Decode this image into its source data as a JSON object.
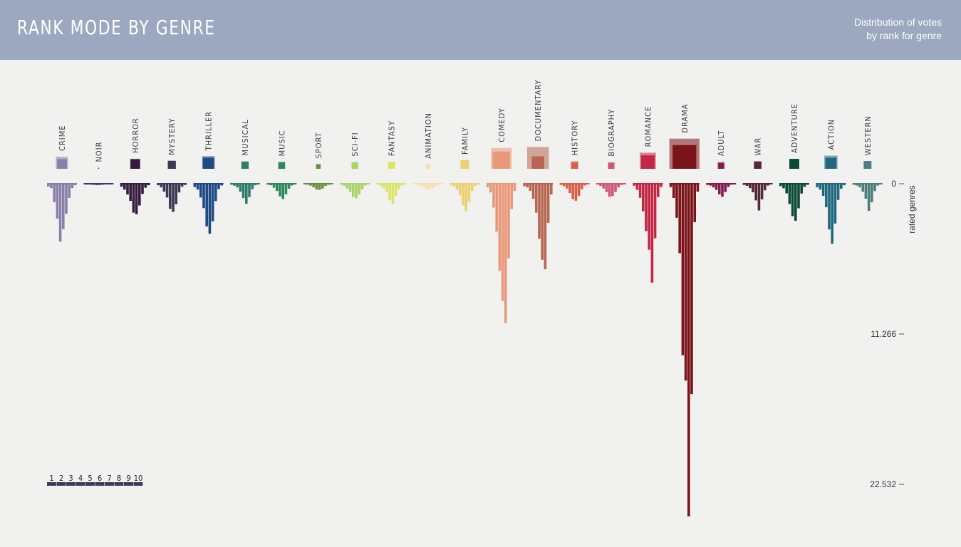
{
  "header": {
    "title": "RANK MODE BY GENRE",
    "subtitle_line1": "Distribution of votes",
    "subtitle_line2": "by rank for genre"
  },
  "colors": {
    "header_bg": "#9ca8c0",
    "axis": "#555555"
  },
  "chart_data": {
    "type": "bar",
    "ylabel": "rated genres",
    "y_ticks": [
      0,
      11266,
      22532
    ],
    "y_tick_labels": [
      "0",
      "11.266",
      "22.532"
    ],
    "ylim": [
      0,
      22532
    ],
    "ranks": [
      1,
      2,
      3,
      4,
      5,
      6,
      7,
      8,
      9,
      10
    ],
    "legend_labels": [
      "1",
      "2",
      "3",
      "4",
      "5",
      "6",
      "7",
      "8",
      "9",
      "10"
    ],
    "series": [
      {
        "name": "CRIME",
        "color": "#8a7fa9",
        "values": [
          220,
          330,
          1380,
          2610,
          4340,
          3400,
          2240,
          1070,
          330,
          110
        ],
        "mode_outer": 1.0,
        "mode_inner": 0.81
      },
      {
        "name": "NOIR",
        "color": "#3b3a6c",
        "values": [
          40,
          60,
          70,
          80,
          100,
          90,
          70,
          50,
          30,
          20
        ],
        "mode_outer": 0,
        "mode_inner": 0.09
      },
      {
        "name": "HORROR",
        "color": "#351c3e",
        "values": [
          220,
          440,
          800,
          1280,
          2170,
          2280,
          1630,
          760,
          300,
          110
        ],
        "mode_outer": 0.83,
        "mode_inner": 0.78
      },
      {
        "name": "MYSTERY",
        "color": "#3c3855",
        "values": [
          110,
          270,
          590,
          1030,
          1880,
          2110,
          1530,
          650,
          220,
          90
        ],
        "mode_outer": 0.66,
        "mode_inner": 0.66
      },
      {
        "name": "THRILLER",
        "color": "#1d4a86",
        "values": [
          250,
          430,
          1030,
          1830,
          3200,
          3750,
          2820,
          1300,
          400,
          130
        ],
        "mode_outer": 1.04,
        "mode_inner": 0.92
      },
      {
        "name": "MUSICAL",
        "color": "#2e7c6d",
        "values": [
          70,
          150,
          280,
          590,
          1080,
          1500,
          1000,
          400,
          120,
          50
        ],
        "mode_outer": 0.62,
        "mode_inner": 0.59
      },
      {
        "name": "MUSIC",
        "color": "#2e8a5e",
        "values": [
          70,
          120,
          300,
          540,
          940,
          1140,
          790,
          370,
          130,
          50
        ],
        "mode_outer": 0.57,
        "mode_inner": 0.55
      },
      {
        "name": "SPORT",
        "color": "#6a8f3e",
        "values": [
          40,
          70,
          140,
          260,
          430,
          450,
          360,
          160,
          70,
          30
        ],
        "mode_outer": 0.38,
        "mode_inner": 0.38
      },
      {
        "name": "SCI-FI",
        "color": "#a8d468",
        "values": [
          70,
          160,
          370,
          620,
          990,
          1090,
          810,
          410,
          130,
          50
        ],
        "mode_outer": 0.55,
        "mode_inner": 0.55
      },
      {
        "name": "FANTASY",
        "color": "#dce565",
        "values": [
          70,
          170,
          350,
          650,
          1250,
          1510,
          900,
          400,
          130,
          50
        ],
        "mode_outer": 0.58,
        "mode_inner": 0.58
      },
      {
        "name": "ANIMATION",
        "color": "#f5e2a8",
        "values": [
          40,
          70,
          140,
          220,
          440,
          430,
          340,
          170,
          70,
          30
        ],
        "mode_outer": 0,
        "mode_inner": 0.37
      },
      {
        "name": "FAMILY",
        "color": "#ecd16d",
        "values": [
          90,
          200,
          430,
          870,
          1630,
          2060,
          1340,
          540,
          170,
          60
        ],
        "mode_outer": 0.71,
        "mode_inner": 0.71
      },
      {
        "name": "COMEDY",
        "color": "#e99879",
        "values": [
          270,
          650,
          1790,
          3590,
          6530,
          8780,
          10440,
          5590,
          1900,
          540
        ],
        "mode_outer": 1.72,
        "mode_inner": 1.43
      },
      {
        "name": "DOCUMENTARY",
        "color": "#b7664f",
        "values": [
          180,
          270,
          540,
          1130,
          2170,
          4120,
          5700,
          6410,
          2930,
          800
        ],
        "mode_outer": 1.8,
        "mode_inner": 1.03
      },
      {
        "name": "HISTORY",
        "color": "#d85e46",
        "values": [
          90,
          180,
          360,
          700,
          1140,
          1270,
          900,
          410,
          130,
          50
        ],
        "mode_outer": 0.63,
        "mode_inner": 0.53
      },
      {
        "name": "BIOGRAPHY",
        "color": "#cc5876",
        "values": [
          70,
          160,
          350,
          620,
          970,
          920,
          620,
          270,
          90,
          40
        ],
        "mode_outer": 0.55,
        "mode_inner": 0.5
      },
      {
        "name": "ROMANCE",
        "color": "#c42744",
        "values": [
          150,
          460,
          1050,
          2060,
          3550,
          4950,
          7410,
          4080,
          1000,
          240
        ],
        "mode_outer": 1.33,
        "mode_inner": 1.11
      },
      {
        "name": "DRAMA",
        "color": "#7a1418",
        "values": [
          250,
          1070,
          2550,
          5200,
          12860,
          14760,
          24940,
          15760,
          2880,
          590
        ],
        "mode_outer": 2.49,
        "mode_inner": 1.96
      },
      {
        "name": "ADULT",
        "color": "#821a4c",
        "values": [
          90,
          140,
          270,
          460,
          790,
          970,
          620,
          240,
          70,
          30
        ],
        "mode_outer": 0.58,
        "mode_inner": 0.47
      },
      {
        "name": "WAR",
        "color": "#56283a",
        "values": [
          90,
          160,
          330,
          640,
          1250,
          2000,
          1170,
          490,
          140,
          50
        ],
        "mode_outer": 0.61,
        "mode_inner": 0.61
      },
      {
        "name": "ADVENTURE",
        "color": "#0a4a38",
        "values": [
          180,
          340,
          720,
          1520,
          2430,
          2770,
          1840,
          730,
          230,
          80
        ],
        "mode_outer": 0.82,
        "mode_inner": 0.82
      },
      {
        "name": "ACTION",
        "color": "#1f687f",
        "values": [
          260,
          430,
          910,
          1760,
          3430,
          4500,
          2980,
          1210,
          370,
          110
        ],
        "mode_outer": 1.09,
        "mode_inner": 0.91
      },
      {
        "name": "WESTERN",
        "color": "#4d7d7d",
        "values": [
          80,
          140,
          270,
          600,
          1120,
          2030,
          1390,
          550,
          140,
          50
        ],
        "mode_outer": 0,
        "mode_inner": 0.64
      }
    ]
  }
}
